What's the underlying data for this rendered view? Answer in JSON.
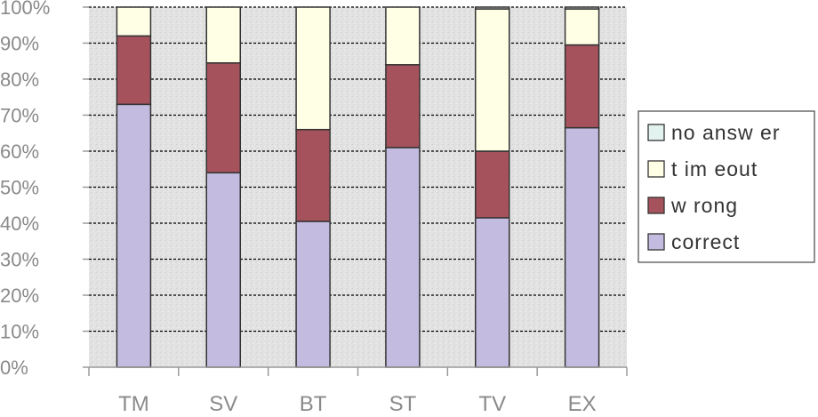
{
  "chart_data": {
    "type": "bar",
    "stacked": true,
    "categories": [
      "TM",
      "SV",
      "BT",
      "ST",
      "TV",
      "EX"
    ],
    "series": [
      {
        "name": "correct",
        "color": "#c4bce0",
        "values": [
          73,
          54,
          40.5,
          61,
          41.5,
          66.5
        ]
      },
      {
        "name": "w rong",
        "color": "#a5525c",
        "values": [
          19,
          30.5,
          25.5,
          23,
          18.5,
          23
        ]
      },
      {
        "name": "t im eout",
        "color": "#ffffe6",
        "values": [
          8,
          15.5,
          34,
          16,
          39.5,
          10
        ]
      },
      {
        "name": "no answ er",
        "color": "#e2f2ee",
        "values": [
          0,
          0,
          0,
          0,
          0.5,
          0.5
        ]
      }
    ],
    "legend_order": [
      "no answ er",
      "t im eout",
      "w rong",
      "correct"
    ],
    "yticks": [
      "0%",
      "10%",
      "20%",
      "30%",
      "40%",
      "50%",
      "60%",
      "70%",
      "80%",
      "90%",
      "100%"
    ],
    "ylim": [
      0,
      100
    ],
    "grid": true,
    "legend_position": "right",
    "plot_background": "#e4e4e4",
    "bar_border_color": "#333333"
  }
}
